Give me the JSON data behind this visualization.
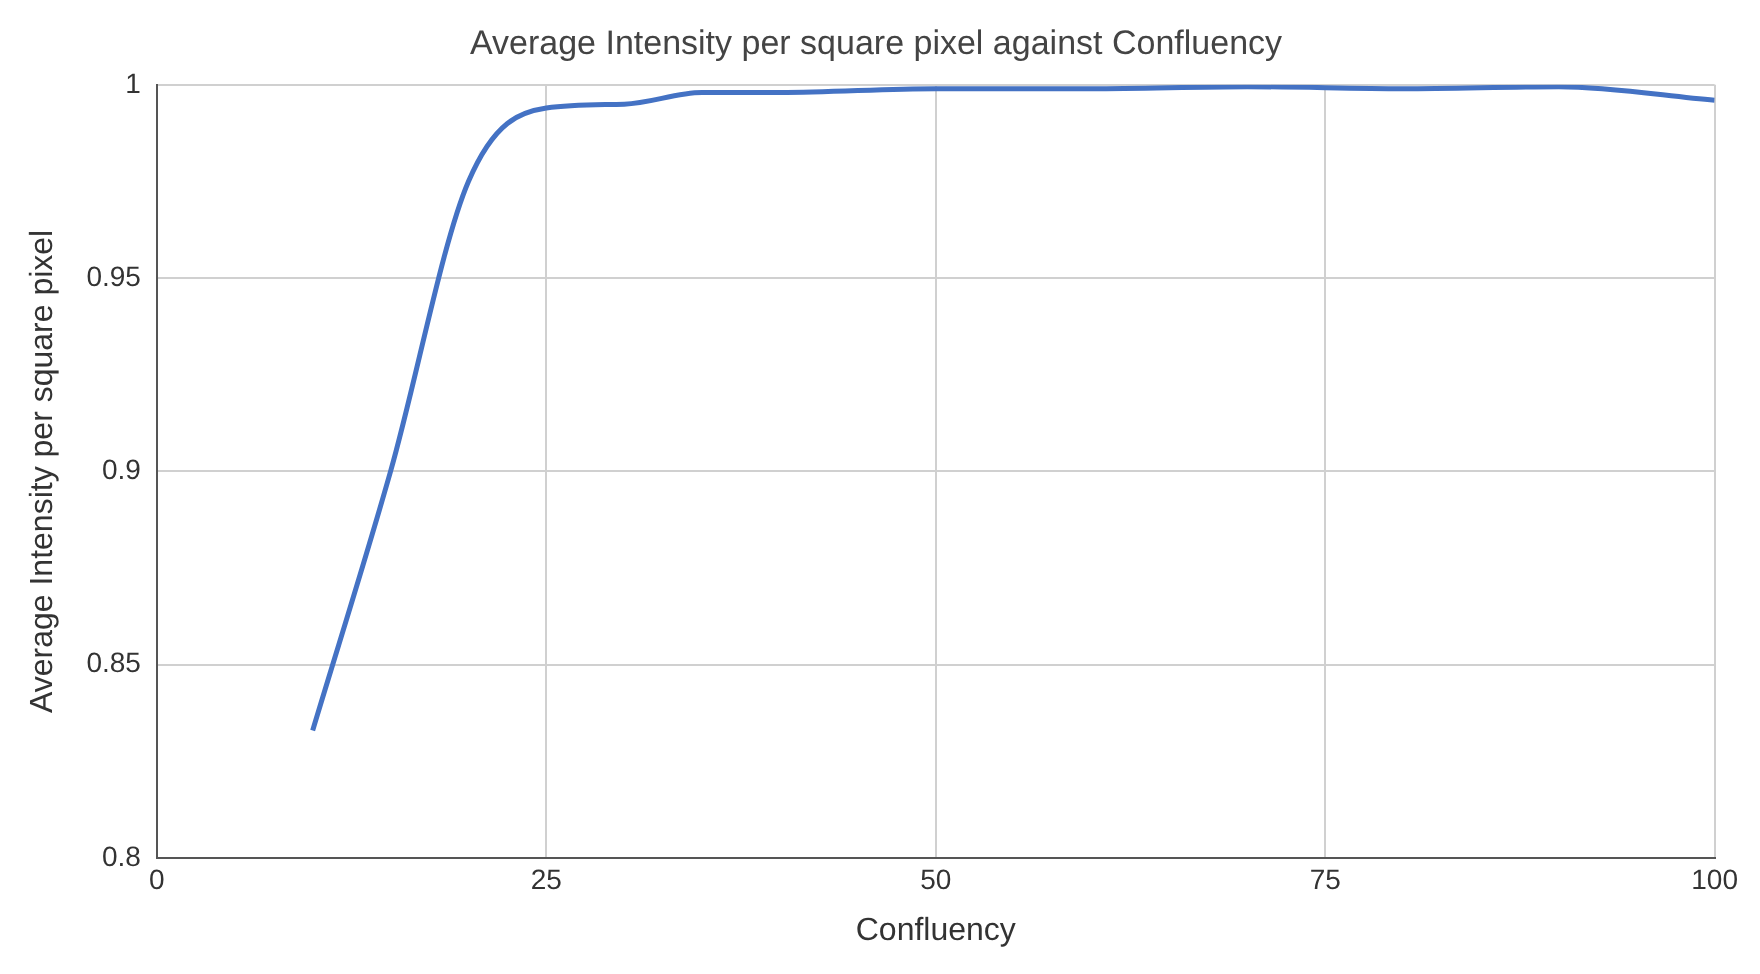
{
  "chart_data": {
    "type": "line",
    "title": "Average Intensity per square pixel against Confluency",
    "xlabel": "Confluency",
    "ylabel": "Average Intensity per square pixel",
    "x": [
      10,
      15,
      20,
      25,
      30,
      35,
      40,
      50,
      60,
      70,
      80,
      90,
      100
    ],
    "series": [
      {
        "color": "#4472c4",
        "values": [
          0.833,
          0.9,
          0.975,
          0.994,
          0.995,
          0.998,
          0.998,
          0.999,
          0.999,
          0.9995,
          0.999,
          0.9995,
          0.996
        ]
      }
    ],
    "xlim": [
      0,
      100
    ],
    "xticks": [
      0,
      25,
      50,
      75,
      100
    ],
    "ylim": [
      0.8,
      1
    ],
    "yticks": [
      0.8,
      0.85,
      0.9,
      0.95,
      1
    ],
    "grid": true,
    "legend": false,
    "marker": "none",
    "line_style": "solid"
  }
}
